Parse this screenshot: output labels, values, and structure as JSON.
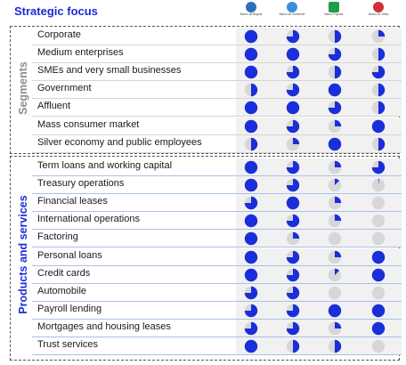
{
  "title": "Strategic focus",
  "colors": {
    "title": "#1f2ad6",
    "pie": "#1a2ed9",
    "pie_empty": "#d7d7d7",
    "segments_label": "#8c8c8c",
    "products_label": "#1a2ed9"
  },
  "logos": [
    {
      "name": "Banco de Bogotá",
      "icon": "bank-logo-blue",
      "color": "#2c6fba"
    },
    {
      "name": "Banco de Occidente",
      "icon": "bank-logo-lightblue",
      "color": "#3a8fd6"
    },
    {
      "name": "Banco Popular",
      "icon": "bank-logo-green",
      "color": "#1f9e4a"
    },
    {
      "name": "Banco AV Villas",
      "icon": "bank-logo-red",
      "color": "#d23131"
    }
  ],
  "groups": [
    {
      "label": "Segments"
    },
    {
      "label": "Products and services"
    }
  ],
  "chart_data": {
    "type": "table",
    "title": "Strategic focus",
    "columns": [
      "Banco de Bogotá",
      "Banco de Occidente",
      "Banco Popular",
      "Banco AV Villas"
    ],
    "groups": [
      {
        "label": "Segments",
        "rows": [
          {
            "label": "Corporate",
            "values": [
              1,
              0.75,
              0.5,
              0.25
            ]
          },
          {
            "label": "Medium enterprises",
            "values": [
              1,
              1,
              0.75,
              0.5
            ]
          },
          {
            "label": "SMEs and very small businesses",
            "values": [
              1,
              0.75,
              0.5,
              0.75
            ]
          },
          {
            "label": "Government",
            "values": [
              0.5,
              0.75,
              1,
              0.5
            ]
          },
          {
            "label": "Affluent",
            "values": [
              1,
              1,
              0.75,
              0.5
            ]
          },
          {
            "label": "Mass consumer market",
            "values": [
              1,
              0.75,
              0.25,
              1
            ]
          },
          {
            "label": "Silver economy and public employees",
            "values": [
              0.5,
              0.25,
              1,
              0.5
            ]
          }
        ]
      },
      {
        "label": "Products and services",
        "rows": [
          {
            "label": "Term loans and working capital",
            "values": [
              1,
              0.75,
              0.25,
              0.75
            ]
          },
          {
            "label": "Treasury operations",
            "values": [
              1,
              0.75,
              0.125,
              0.02
            ]
          },
          {
            "label": "Financial leases",
            "values": [
              0.75,
              1,
              0.25,
              0
            ]
          },
          {
            "label": "International operations",
            "values": [
              1,
              0.75,
              0.25,
              0
            ]
          },
          {
            "label": "Factoring",
            "values": [
              1,
              0.25,
              0,
              0
            ]
          },
          {
            "label": "Personal loans",
            "values": [
              1,
              0.75,
              0.25,
              1
            ]
          },
          {
            "label": "Credit cards",
            "values": [
              1,
              0.75,
              0.125,
              1
            ]
          },
          {
            "label": "Automobile",
            "values": [
              0.75,
              0.75,
              0,
              0
            ]
          },
          {
            "label": "Payroll lending",
            "values": [
              0.75,
              0.75,
              1,
              1
            ]
          },
          {
            "label": "Mortgages and housing leases",
            "values": [
              0.75,
              0.75,
              0.25,
              1
            ]
          },
          {
            "label": "Trust services",
            "values": [
              1,
              0.5,
              0.5,
              0
            ]
          }
        ]
      }
    ]
  }
}
